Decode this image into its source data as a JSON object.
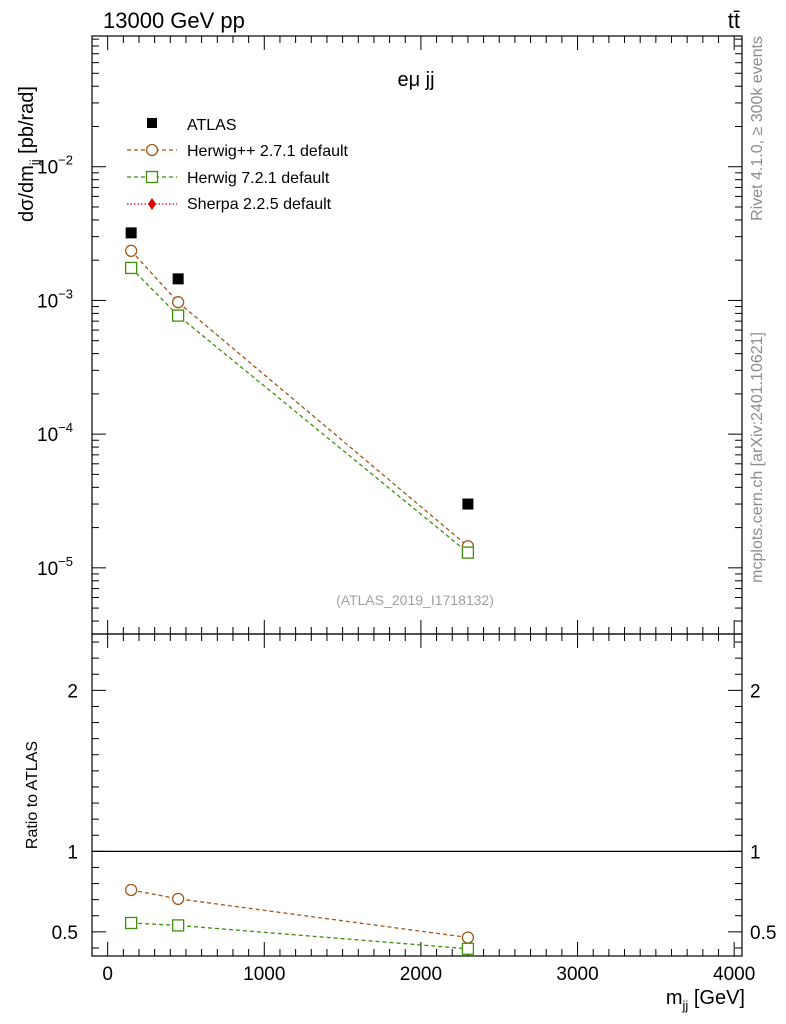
{
  "header": {
    "energy_label": "13000 GeV pp",
    "process_label": "tt̄",
    "panel_label": "eμ jj",
    "analysis_id": "(ATLAS_2019_I1718132)"
  },
  "side_labels": {
    "rivet": "Rivet 4.1.0, ≥ 300k events",
    "mcplots": "mcplots.cern.ch [arXiv:2401.10621]"
  },
  "colors": {
    "atlas": "#000000",
    "herwigpp": "#a0581b",
    "herwig7": "#3f8f0c",
    "sherpa": "#e00000"
  },
  "chart_data": [
    {
      "type": "scatter",
      "panel": "main",
      "title": "eμ jj",
      "xlabel_main": "m",
      "xlabel_sub": "jj",
      "xlabel_unit": " [GeV]",
      "ylabel_main": "dσ/dm",
      "ylabel_sub": "jj",
      "ylabel_unit": " [pb/rad]",
      "xlim": [
        -100,
        4050
      ],
      "ylim": [
        3.2e-06,
        0.095
      ],
      "yscale": "log",
      "y_ticks": [
        {
          "value": 1e-05,
          "base": "10",
          "exp": "−5"
        },
        {
          "value": 0.0001,
          "base": "10",
          "exp": "−4"
        },
        {
          "value": 0.001,
          "base": "10",
          "exp": "−3"
        },
        {
          "value": 0.01,
          "base": "10",
          "exp": "−2"
        }
      ],
      "x": [
        150,
        450,
        2300
      ],
      "series": [
        {
          "name": "ATLAS",
          "key": "atlas",
          "marker": "square-filled",
          "line": "none",
          "values": [
            0.0032,
            0.00145,
            3e-05
          ]
        },
        {
          "name": "Herwig++ 2.7.1 default",
          "key": "herwigpp",
          "marker": "circle-open",
          "line": "dashed",
          "values": [
            0.00235,
            0.00097,
            1.45e-05
          ]
        },
        {
          "name": "Herwig 7.2.1 default",
          "key": "herwig7",
          "marker": "square-open",
          "line": "dashed",
          "values": [
            0.00175,
            0.00077,
            1.3e-05
          ]
        },
        {
          "name": "Sherpa 2.2.5 default",
          "key": "sherpa",
          "marker": "diamond-filled",
          "line": "dotted",
          "values": []
        }
      ],
      "legend_position": "top-left"
    },
    {
      "type": "scatter",
      "panel": "ratio",
      "ylabel": "Ratio to ATLAS",
      "xlabel": "m_jj [GeV]",
      "xlim": [
        -100,
        4050
      ],
      "ylim": [
        0.35,
        2.35
      ],
      "reference_line": 1,
      "x_ticks": [
        {
          "value": 0,
          "label": "0"
        },
        {
          "value": 1000,
          "label": "1000"
        },
        {
          "value": 2000,
          "label": "2000"
        },
        {
          "value": 3000,
          "label": "3000"
        },
        {
          "value": 4000,
          "label": "4000"
        }
      ],
      "y_ticks": [
        {
          "value": 0.5,
          "label": "0.5"
        },
        {
          "value": 1,
          "label": "1"
        },
        {
          "value": 2,
          "label": "2"
        }
      ],
      "x": [
        150,
        450,
        2300
      ],
      "series": [
        {
          "name": "Herwig++ 2.7.1 default",
          "key": "herwigpp",
          "marker": "circle-open",
          "line": "dashed",
          "values": [
            0.76,
            0.705,
            0.465
          ],
          "errors": [
            0.005,
            0.005,
            0.035
          ]
        },
        {
          "name": "Herwig 7.2.1 default",
          "key": "herwig7",
          "marker": "square-open",
          "line": "dashed",
          "values": [
            0.555,
            0.54,
            0.395
          ],
          "errors": [
            0.004,
            0.004,
            0.02
          ]
        }
      ]
    }
  ]
}
